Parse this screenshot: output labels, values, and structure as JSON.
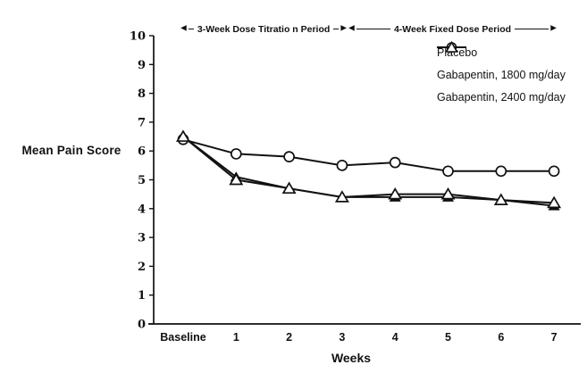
{
  "figure": {
    "background": "#ffffff",
    "ink_color": "#111111",
    "y_axis_title": "Mean Pain Score",
    "x_axis_title": "Weeks"
  },
  "chart_data": {
    "type": "line",
    "title": "",
    "xlabel": "Weeks",
    "ylabel": "Mean Pain Score",
    "categories": [
      "Baseline",
      "1",
      "2",
      "3",
      "4",
      "5",
      "6",
      "7"
    ],
    "ylim": [
      0,
      10
    ],
    "yticks": [
      0,
      1,
      2,
      3,
      4,
      5,
      6,
      7,
      8,
      9,
      10
    ],
    "grid": false,
    "legend_position": "top-right-inside",
    "series": [
      {
        "name": "Placebo",
        "marker": "circle-open",
        "color": "#111111",
        "values": [
          6.4,
          5.9,
          5.8,
          5.5,
          5.6,
          5.3,
          5.3,
          5.3
        ]
      },
      {
        "name": "Gabapentin, 1800 mg/day",
        "marker": "triangle-filled",
        "color": "#111111",
        "values": [
          6.5,
          5.1,
          4.7,
          4.4,
          4.4,
          4.4,
          4.3,
          4.1
        ]
      },
      {
        "name": "Gabapentin, 2400 mg/day",
        "marker": "triangle-open",
        "color": "#111111",
        "values": [
          6.5,
          5.0,
          4.7,
          4.4,
          4.5,
          4.5,
          4.3,
          4.2
        ]
      }
    ],
    "annotations": [
      {
        "label": "3-Week Dose Titratio n Period",
        "span": [
          "Baseline",
          "3"
        ]
      },
      {
        "label": "4-Week Fixed Dose Period",
        "span": [
          "3",
          "7"
        ]
      }
    ]
  }
}
